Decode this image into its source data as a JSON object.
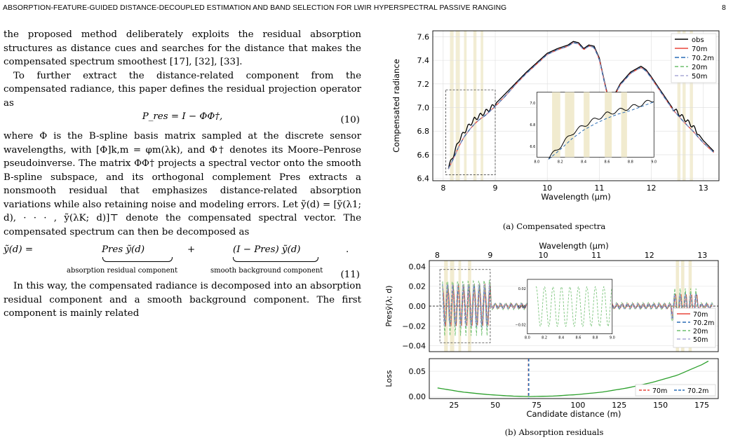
{
  "header": {
    "title": "ABSORPTION-FEATURE-GUIDED DISTANCE-DECOUPLED ESTIMATION AND BAND SELECTION FOR LWIR HYPERSPECTRAL PASSIVE RANGING",
    "page": "8"
  },
  "body": {
    "p1": "the proposed method deliberately exploits the residual absorption structures as distance cues and searches for the distance that makes the compensated spectrum smoothest [17], [32], [33].",
    "p2": "To further extract the distance-related component from the compensated radiance, this paper defines the residual projection operator as",
    "eq10": "P_res = I − ΦΦ†,",
    "eq10_num": "(10)",
    "p3": "where Φ is the B-spline basis matrix sampled at the discrete sensor wavelengths, with [Φ]k,m = φm(λk), and Φ† denotes its Moore–Penrose pseudoinverse. The matrix ΦΦ† projects a spectral vector onto the smooth B-spline subspace, and its orthogonal complement Pres extracts a nonsmooth residual that emphasizes distance-related absorption variations while also retaining noise and modeling errors. Let ỹ(d) = [ỹ(λ1; d), · · · , ỹ(λK; d)]⊤ denote the compensated spectral vector. The compensated spectrum can then be decomposed as",
    "eq11_lhs": "ỹ(d) =",
    "eq11_t1": "Pres ỹ(d)",
    "eq11_u1": "absorption residual component",
    "eq11_plus": "+",
    "eq11_t2": "(I − Pres) ỹ(d)",
    "eq11_u2": "smooth background component",
    "eq11_dot": ".",
    "eq11_num": "(11)",
    "p4": "In this way, the compensated radiance is decomposed into an absorption residual component and a smooth background component. The first component is mainly related"
  },
  "figure_a": {
    "caption": "(a) Compensated spectra"
  },
  "figure_b": {
    "caption": "(b) Absorption residuals"
  },
  "chart_data": [
    {
      "type": "line",
      "xlabel": "Wavelength (μm)",
      "ylabel": "Compensated radiance",
      "xlim": [
        7.8,
        13.3
      ],
      "ylim": [
        6.38,
        7.65
      ],
      "xticks": [
        8,
        9,
        10,
        11,
        12,
        13
      ],
      "yticks": [
        6.4,
        6.6,
        6.8,
        7.0,
        7.2,
        7.4,
        7.6
      ],
      "legend": [
        "obs",
        "70m",
        "70.2m",
        "20m",
        "50m"
      ],
      "legend_position": "top-right",
      "colors": {
        "obs": "#000000",
        "70m": "#e8463c",
        "70.2m": "#2a6db5",
        "20m": "#6fbf6f",
        "50m": "#a9a9d6"
      },
      "x": [
        8.1,
        8.2,
        8.3,
        8.4,
        8.5,
        8.6,
        8.7,
        8.8,
        8.9,
        9.0,
        9.2,
        9.4,
        9.6,
        9.8,
        10.0,
        10.2,
        10.4,
        10.5,
        10.6,
        10.7,
        10.8,
        10.9,
        11.0,
        11.1,
        11.2,
        11.4,
        11.6,
        11.8,
        11.9,
        12.0,
        12.2,
        12.4,
        12.6,
        12.8,
        13.0,
        13.2
      ],
      "series": [
        {
          "name": "obs",
          "values": [
            6.49,
            6.6,
            6.72,
            6.79,
            6.85,
            6.9,
            6.93,
            6.96,
            6.99,
            7.03,
            7.12,
            7.21,
            7.3,
            7.38,
            7.46,
            7.5,
            7.53,
            7.56,
            7.55,
            7.5,
            7.53,
            7.52,
            7.42,
            7.22,
            7.03,
            7.2,
            7.3,
            7.35,
            7.32,
            7.26,
            7.13,
            7.0,
            6.92,
            6.84,
            6.72,
            6.63
          ]
        },
        {
          "name": "70m",
          "values": [
            6.48,
            6.57,
            6.67,
            6.75,
            6.81,
            6.86,
            6.9,
            6.93,
            6.97,
            7.01,
            7.1,
            7.2,
            7.29,
            7.37,
            7.45,
            7.49,
            7.52,
            7.55,
            7.54,
            7.49,
            7.52,
            7.51,
            7.41,
            7.21,
            7.02,
            7.19,
            7.29,
            7.34,
            7.31,
            7.25,
            7.12,
            6.99,
            6.89,
            6.8,
            6.7,
            6.62
          ]
        }
      ],
      "inset": {
        "xlim": [
          8.0,
          9.0
        ],
        "yticks": [
          6.6,
          6.8,
          7.0
        ],
        "xticks": [
          8.0,
          8.2,
          8.4,
          8.6,
          8.8,
          9.0
        ]
      }
    },
    {
      "type": "line",
      "xlabel": "Wavelength (μm)",
      "ylabel": "Presỹ(λ; d)",
      "xticks": [
        8,
        9,
        10,
        11,
        12,
        13
      ],
      "yticks": [
        -0.04,
        -0.02,
        0.0,
        0.02,
        0.04
      ],
      "ylim": [
        -0.046,
        0.046
      ],
      "legend": [
        "70m",
        "70.2m",
        "20m",
        "50m"
      ],
      "inset": {
        "xticks": [
          8.0,
          8.2,
          8.4,
          8.6,
          8.8,
          9.0
        ],
        "yticks": [
          -0.02,
          0.0,
          0.02
        ]
      }
    },
    {
      "type": "line",
      "xlabel": "Candidate distance (m)",
      "ylabel": "Loss",
      "xlim": [
        10,
        185
      ],
      "ylim": [
        -0.004,
        0.075
      ],
      "xticks": [
        25,
        50,
        75,
        100,
        125,
        150,
        175
      ],
      "yticks": [
        0.0,
        0.05
      ],
      "legend": [
        "70m",
        "70.2m"
      ],
      "legend_position": "bottom-right",
      "x": [
        15,
        30,
        45,
        60,
        70,
        85,
        100,
        115,
        130,
        145,
        160,
        175,
        180
      ],
      "values": [
        0.017,
        0.009,
        0.004,
        0.001,
        0.0,
        0.001,
        0.004,
        0.009,
        0.017,
        0.028,
        0.042,
        0.063,
        0.072
      ],
      "vlines": [
        {
          "name": "70m",
          "x": 70
        },
        {
          "name": "70.2m",
          "x": 70.2
        }
      ]
    }
  ]
}
